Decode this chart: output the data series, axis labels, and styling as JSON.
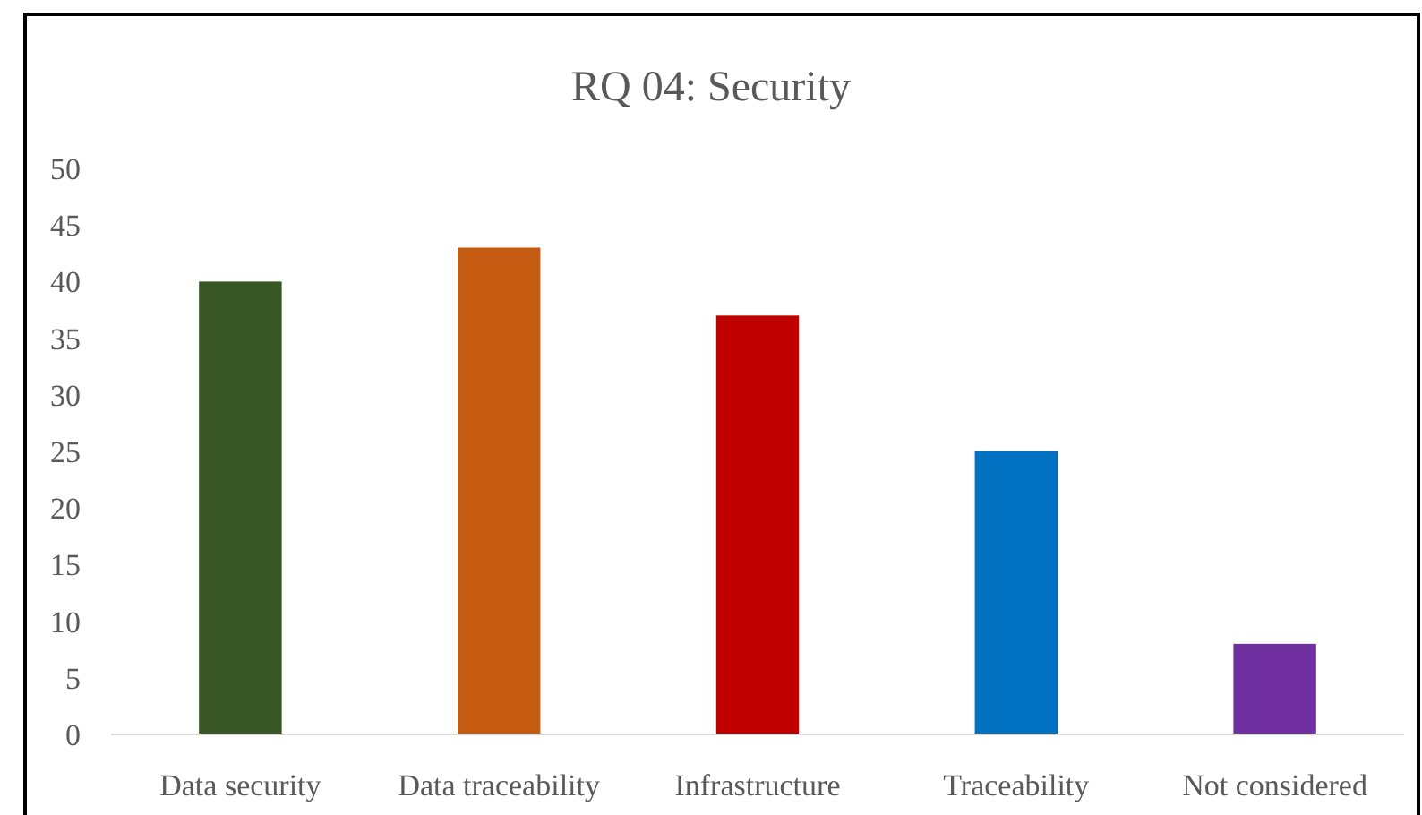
{
  "chart_data": {
    "type": "bar",
    "title": "RQ 04: Security",
    "categories": [
      "Data security",
      "Data traceability",
      "Infrastructure",
      "Traceability",
      "Not considered"
    ],
    "values": [
      40,
      43,
      37,
      25,
      8
    ],
    "colors": [
      "#375623",
      "#c55a11",
      "#c00000",
      "#0070c0",
      "#7030a0"
    ],
    "ylim": [
      0,
      50
    ],
    "yticks": [
      0,
      5,
      10,
      15,
      20,
      25,
      30,
      35,
      40,
      45,
      50
    ],
    "grid": false
  }
}
